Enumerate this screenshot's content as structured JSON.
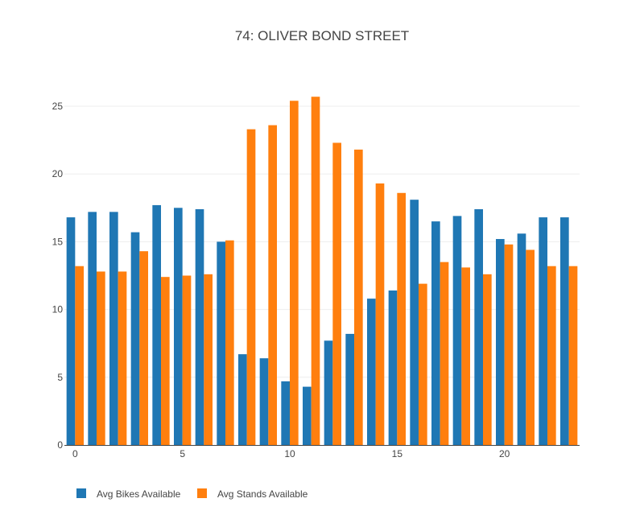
{
  "chart_data": {
    "type": "bar",
    "title": "74: OLIVER BOND STREET",
    "xlabel": "",
    "ylabel": "",
    "x": [
      0,
      1,
      2,
      3,
      4,
      5,
      6,
      7,
      8,
      9,
      10,
      11,
      12,
      13,
      14,
      15,
      16,
      17,
      18,
      19,
      20,
      21,
      22,
      23
    ],
    "x_ticks": [
      0,
      5,
      10,
      15,
      20
    ],
    "y_ticks": [
      0,
      5,
      10,
      15,
      20,
      25
    ],
    "ylim": [
      0,
      26.9
    ],
    "xlim": [
      -0.5,
      23.5
    ],
    "grid": true,
    "legend_position": "bottom-left",
    "series": [
      {
        "name": "Avg Bikes Available",
        "color": "#1f77b4",
        "values": [
          16.8,
          17.2,
          17.2,
          15.7,
          17.7,
          17.5,
          17.4,
          15.0,
          6.7,
          6.4,
          4.7,
          4.3,
          7.7,
          8.2,
          10.8,
          11.4,
          18.1,
          16.5,
          16.9,
          17.4,
          15.2,
          15.6,
          16.8,
          16.8
        ]
      },
      {
        "name": "Avg Stands Available",
        "color": "#ff7f0e",
        "values": [
          13.2,
          12.8,
          12.8,
          14.3,
          12.4,
          12.5,
          12.6,
          15.1,
          23.3,
          23.6,
          25.4,
          25.7,
          22.3,
          21.8,
          19.3,
          18.6,
          11.9,
          13.5,
          13.1,
          12.6,
          14.8,
          14.4,
          13.2,
          13.2
        ]
      }
    ]
  }
}
